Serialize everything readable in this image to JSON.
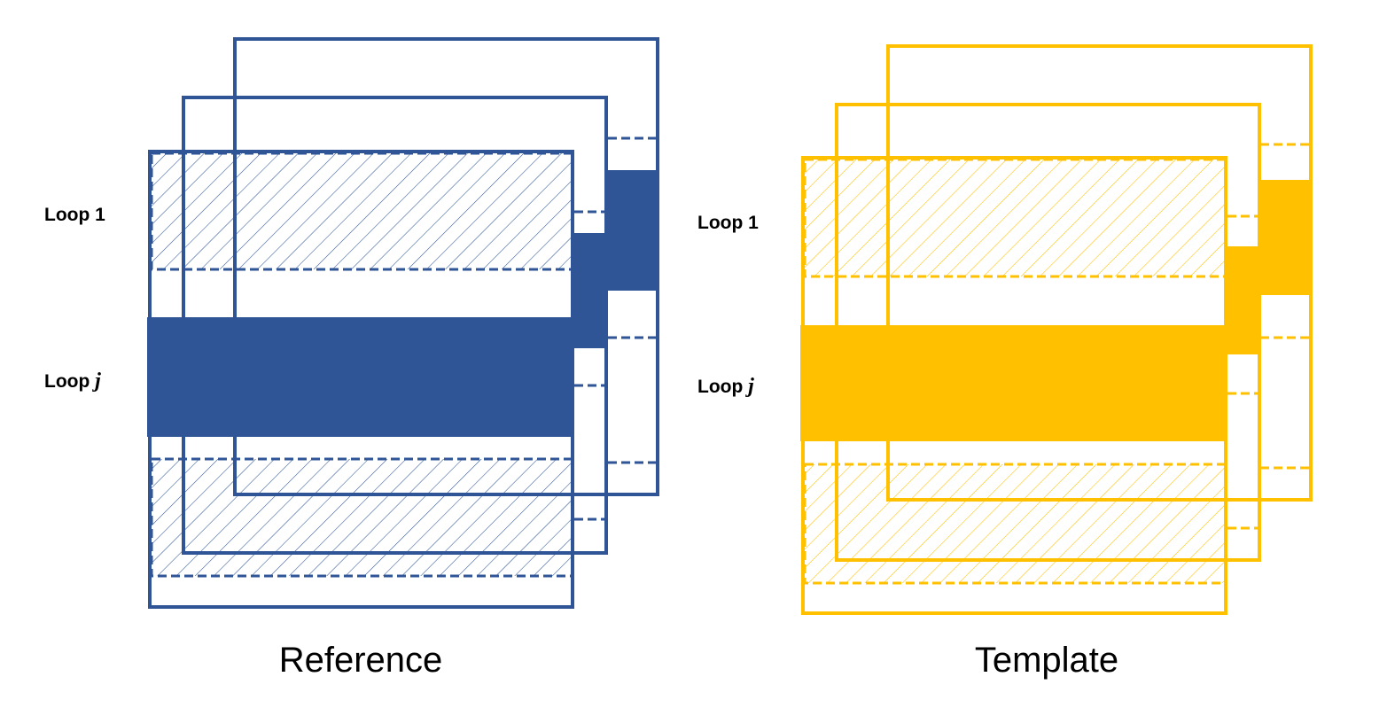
{
  "panels": [
    {
      "id": "reference",
      "caption": "Reference",
      "color": "#2F5597",
      "loop_first_label": "Loop 1",
      "loop_j_prefix": "Loop ",
      "loop_j_var": "j"
    },
    {
      "id": "template",
      "caption": "Template",
      "color": "#FFC000",
      "loop_first_label": "Loop 1",
      "loop_j_prefix": "Loop ",
      "loop_j_var": "j"
    }
  ]
}
